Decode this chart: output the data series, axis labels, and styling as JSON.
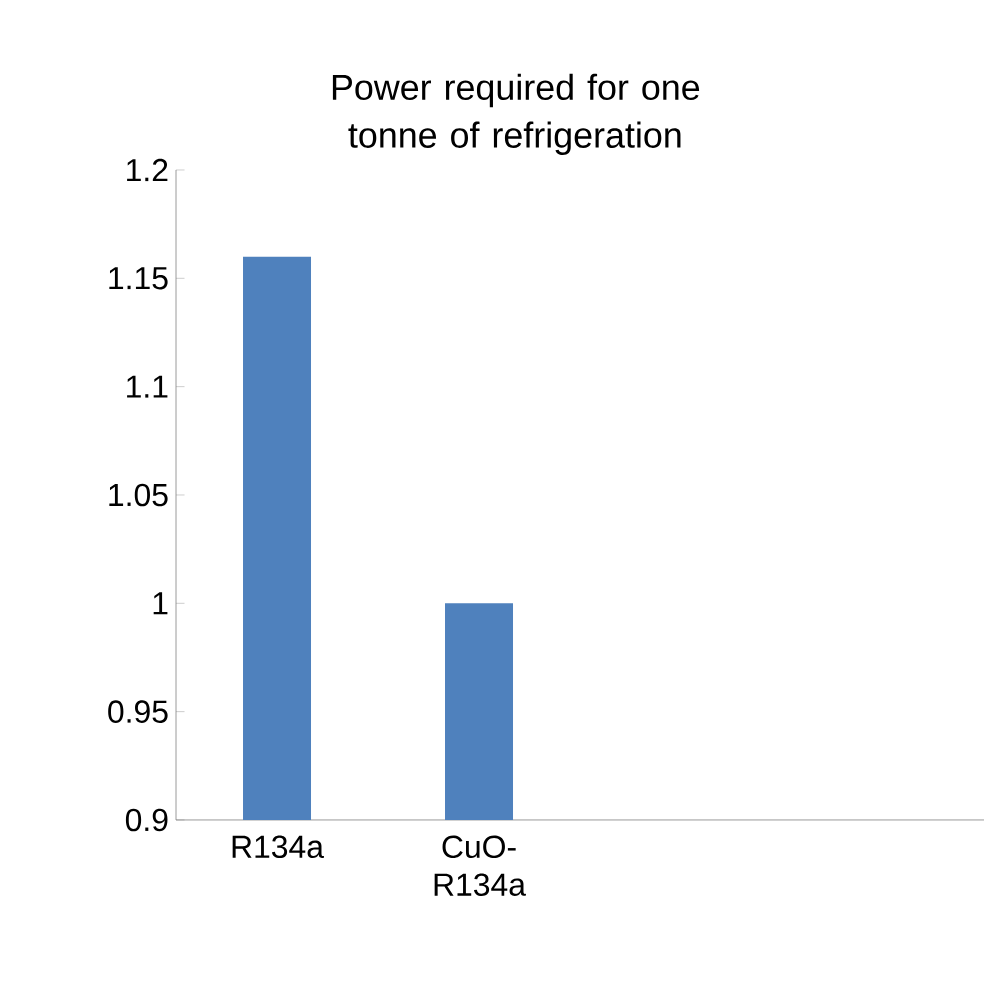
{
  "chart_data": {
    "type": "bar",
    "title": "Power required for one tonne of refrigeration",
    "categories": [
      "R134a",
      "CuO-R134a",
      null,
      null
    ],
    "values": [
      1.16,
      1.0,
      null,
      null
    ],
    "color": "#4f81bd",
    "ylim": [
      0.9,
      1.2
    ],
    "yticks": [
      0.9,
      0.95,
      1,
      1.05,
      1.1,
      1.15,
      1.2
    ],
    "grid": false
  }
}
